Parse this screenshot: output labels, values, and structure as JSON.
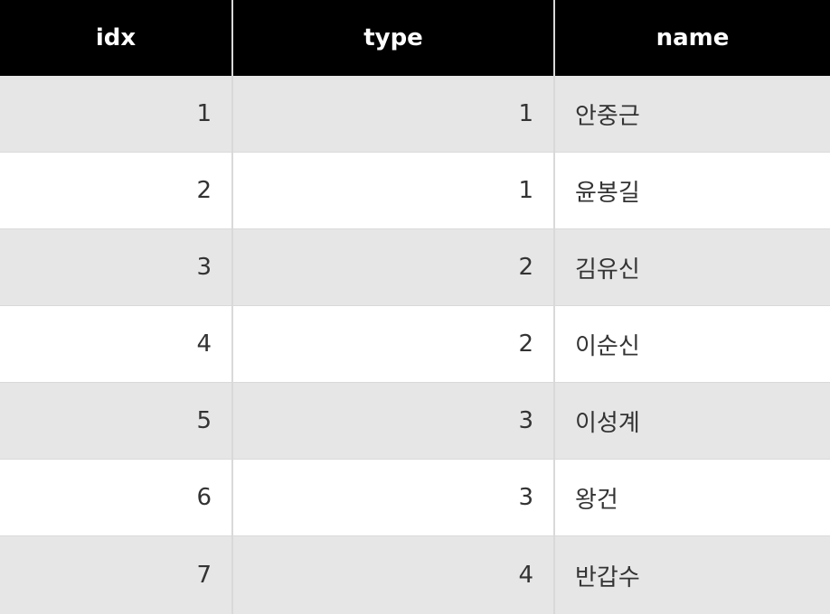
{
  "columns": [
    "idx",
    "type",
    "name"
  ],
  "rows": [
    {
      "idx": "1",
      "type": "1",
      "name": "안중근"
    },
    {
      "idx": "2",
      "type": "1",
      "name": "윤봉길"
    },
    {
      "idx": "3",
      "type": "2",
      "name": "김유신"
    },
    {
      "idx": "4",
      "type": "2",
      "name": "이순신"
    },
    {
      "idx": "5",
      "type": "3",
      "name": "이성계"
    },
    {
      "idx": "6",
      "type": "3",
      "name": "왕건"
    },
    {
      "idx": "7",
      "type": "4",
      "name": "반갑수"
    }
  ],
  "colors": {
    "header_bg": "#000000",
    "header_text": "#ffffff",
    "row_odd_bg": "#e6e6e6",
    "row_even_bg": "#ffffff",
    "cell_text": "#333333",
    "grid_line": "#d9d9d9"
  }
}
